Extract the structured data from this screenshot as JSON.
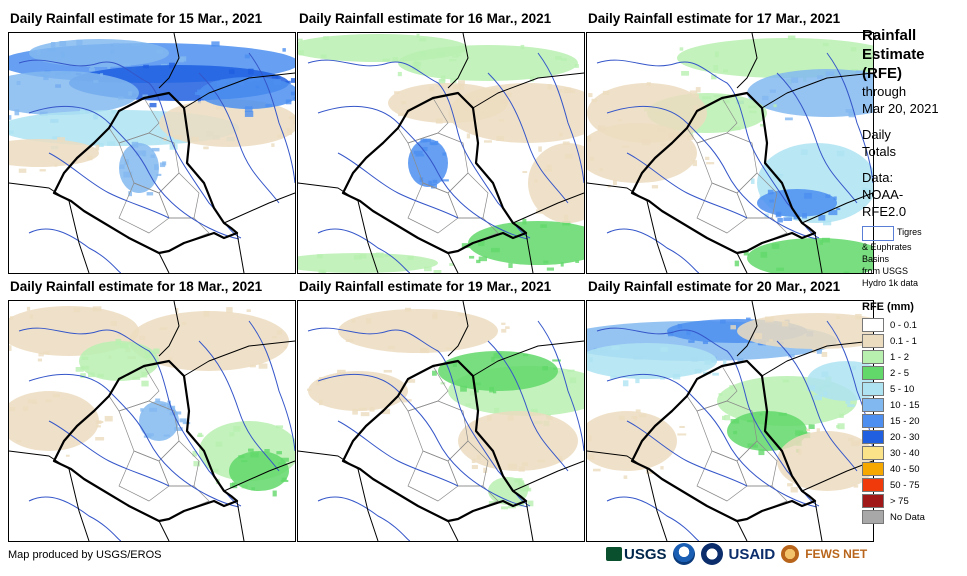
{
  "panels": [
    {
      "title": "Daily Rainfall estimate for 15 Mar., 2021"
    },
    {
      "title": "Daily Rainfall estimate for 16 Mar., 2021"
    },
    {
      "title": "Daily Rainfall estimate for 17 Mar., 2021"
    },
    {
      "title": "Daily Rainfall estimate for 18 Mar., 2021"
    },
    {
      "title": "Daily Rainfall estimate for 19 Mar., 2021"
    },
    {
      "title": "Daily Rainfall estimate for 20 Mar., 2021"
    }
  ],
  "sidebar": {
    "title_lines": [
      "Rainfall",
      "Estimate",
      "(RFE)"
    ],
    "through": "through",
    "date": "Mar 20, 2021",
    "daily_lines": [
      "Daily",
      "Totals"
    ],
    "data_lines": [
      "Data:",
      "NOAA-",
      "RFE2.0"
    ],
    "basins_label_1": "Tigres",
    "basins_label_rest": [
      "& Euphrates",
      "Basins",
      "from USGS",
      "Hydro 1k data"
    ],
    "legend_title": "RFE (mm)",
    "legend": [
      {
        "label": "0 - 0.1",
        "color": "#ffffff"
      },
      {
        "label": "0.1 - 1",
        "color": "#ecdcbf"
      },
      {
        "label": "1 - 2",
        "color": "#b8f0b0"
      },
      {
        "label": "2 - 5",
        "color": "#62d86a"
      },
      {
        "label": "5 - 10",
        "color": "#aee3f2"
      },
      {
        "label": "10 - 15",
        "color": "#82b8f0"
      },
      {
        "label": "15 - 20",
        "color": "#4c8ff0"
      },
      {
        "label": "20 - 30",
        "color": "#1f5fe0"
      },
      {
        "label": "30 - 40",
        "color": "#fbe38a"
      },
      {
        "label": "40 - 50",
        "color": "#f7a800"
      },
      {
        "label": "50 - 75",
        "color": "#f03a0c"
      },
      {
        "label": "> 75",
        "color": "#a01818"
      },
      {
        "label": "No Data",
        "color": "#a8a8a8"
      }
    ]
  },
  "footer": {
    "credit": "Map produced by USGS/EROS",
    "logos": {
      "usgs": "USGS",
      "usaid": "USAID",
      "fews": "FEWS NET"
    }
  }
}
